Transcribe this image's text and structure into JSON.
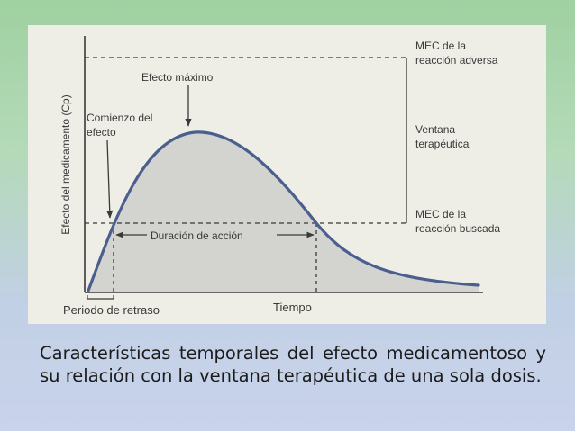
{
  "diagram": {
    "y_axis_label": "Efecto del medicamento (Cp)",
    "x_axis_label": "Tiempo",
    "delay_label": "Periodo de retraso",
    "peak_label": "Efecto máximo",
    "onset_label_line1": "Comienzo del",
    "onset_label_line2": "efecto",
    "duration_label": "Duración de acción",
    "mec_adverse_line1": "MEC de la",
    "mec_adverse_line2": "reacción adversa",
    "window_line1": "Ventana",
    "window_line2": "terapéutica",
    "mec_desired_line1": "MEC de la",
    "mec_desired_line2": "reacción buscada",
    "colors": {
      "curve": "#4b5f8f",
      "fill": "#d3d3cf",
      "ink": "#3a3a3a",
      "panel": "#eeede6"
    }
  },
  "caption": "Características temporales del efecto medicamentoso y su relación con la ventana terapéutica de una sola dosis."
}
